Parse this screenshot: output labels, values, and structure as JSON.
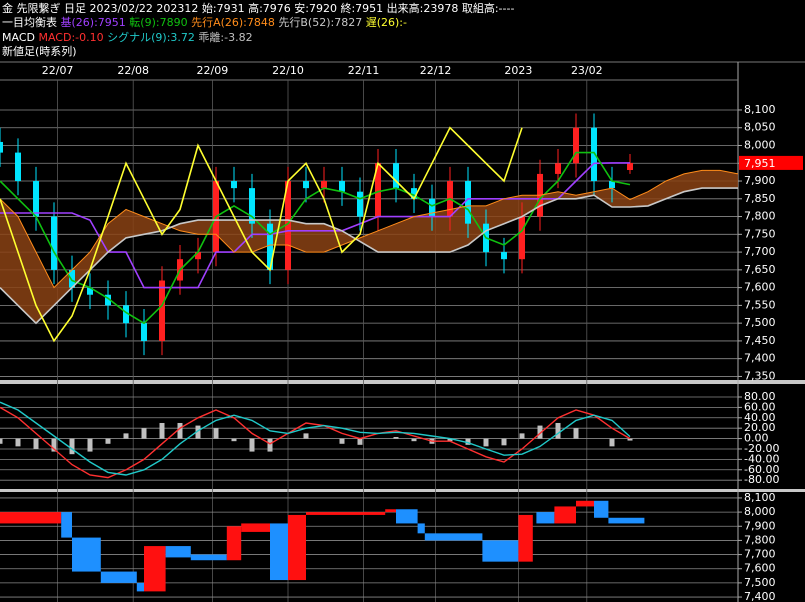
{
  "chart_data": [
    {
      "type": "candlestick",
      "title": "金 先限繋ぎ 日足 2023/02/22 202312 始:7931 高:7976 安:7920 終:7951 出来高:23978 取組高:----",
      "subtitle": "一目均衡表",
      "xlim": [
        0,
        205
      ],
      "ylim": [
        7340,
        8235
      ],
      "grid": true,
      "xticks": [
        {
          "value": 16,
          "label": "22/07"
        },
        {
          "value": 37,
          "label": "22/08"
        },
        {
          "value": 59,
          "label": "22/09"
        },
        {
          "value": 80,
          "label": "22/10"
        },
        {
          "value": 101,
          "label": "22/11"
        },
        {
          "value": 121,
          "label": "22/12"
        },
        {
          "value": 144,
          "label": "2023"
        },
        {
          "value": 163,
          "label": "23/02"
        }
      ],
      "yticks": [
        {
          "value": 7350,
          "label": "7,350"
        },
        {
          "value": 7400,
          "label": "7,400"
        },
        {
          "value": 7450,
          "label": "7,450"
        },
        {
          "value": 7500,
          "label": "7,500"
        },
        {
          "value": 7550,
          "label": "7,550"
        },
        {
          "value": 7600,
          "label": "7,600"
        },
        {
          "value": 7650,
          "label": "7,650"
        },
        {
          "value": 7700,
          "label": "7,700"
        },
        {
          "value": 7750,
          "label": "7,750"
        },
        {
          "value": 7800,
          "label": "7,800"
        },
        {
          "value": 7850,
          "label": "7,850"
        },
        {
          "value": 7900,
          "label": "7,900"
        },
        {
          "value": 7950,
          "label": "7,950"
        },
        {
          "value": 8000,
          "label": "8,000"
        },
        {
          "value": 8050,
          "label": "8,050"
        },
        {
          "value": 8100,
          "label": "8,100"
        }
      ],
      "last_price": {
        "value": 7951,
        "label": "7,951"
      },
      "last_price_color": "#ff0000",
      "candles": {
        "up_color": "#ff2020",
        "down_color": "#00e5ff",
        "x": [
          0,
          5,
          10,
          15,
          20,
          25,
          30,
          35,
          40,
          45,
          50,
          55,
          60,
          65,
          70,
          75,
          80,
          85,
          90,
          95,
          100,
          105,
          110,
          115,
          120,
          125,
          130,
          135,
          140,
          145,
          150,
          155,
          160,
          165,
          170,
          175
        ],
        "open": [
          8010,
          7980,
          7900,
          7800,
          7650,
          7600,
          7580,
          7550,
          7500,
          7450,
          7620,
          7680,
          7700,
          7900,
          7880,
          7780,
          7650,
          7900,
          7880,
          7900,
          7870,
          7800,
          7950,
          7880,
          7850,
          7800,
          7900,
          7780,
          7700,
          7680,
          7800,
          7920,
          7950,
          8050,
          7900,
          7931
        ],
        "high": [
          8050,
          8020,
          7940,
          7840,
          7690,
          7640,
          7620,
          7590,
          7540,
          7660,
          7720,
          7740,
          7940,
          7940,
          7920,
          7820,
          7940,
          7940,
          7940,
          7940,
          7910,
          7990,
          7990,
          7920,
          7890,
          7940,
          7940,
          7820,
          7740,
          7840,
          7960,
          7990,
          8090,
          8090,
          7940,
          7976
        ],
        "low": [
          7940,
          7860,
          7760,
          7610,
          7560,
          7540,
          7510,
          7460,
          7410,
          7410,
          7580,
          7640,
          7660,
          7840,
          7740,
          7610,
          7610,
          7840,
          7840,
          7830,
          7760,
          7760,
          7840,
          7810,
          7760,
          7760,
          7740,
          7660,
          7640,
          7640,
          7760,
          7880,
          7910,
          7860,
          7840,
          7920
        ],
        "close": [
          7980,
          7900,
          7800,
          7650,
          7600,
          7580,
          7550,
          7500,
          7450,
          7620,
          7680,
          7700,
          7900,
          7880,
          7780,
          7650,
          7900,
          7880,
          7900,
          7870,
          7800,
          7950,
          7880,
          7850,
          7800,
          7900,
          7780,
          7700,
          7680,
          7800,
          7920,
          7950,
          8050,
          7900,
          7880,
          7951
        ]
      },
      "series": [
        {
          "name": "基(26):7951",
          "color": "#a040ff",
          "x": [
            0,
            5,
            10,
            15,
            20,
            25,
            30,
            35,
            40,
            45,
            50,
            55,
            60,
            65,
            70,
            75,
            80,
            85,
            90,
            95,
            100,
            105,
            110,
            115,
            120,
            125,
            130,
            135,
            140,
            145,
            150,
            155,
            160,
            165,
            170,
            175
          ],
          "values": [
            7810,
            7810,
            7810,
            7810,
            7810,
            7790,
            7700,
            7700,
            7600,
            7600,
            7600,
            7600,
            7700,
            7700,
            7750,
            7750,
            7760,
            7760,
            7760,
            7760,
            7780,
            7800,
            7800,
            7800,
            7800,
            7800,
            7850,
            7850,
            7850,
            7850,
            7850,
            7850,
            7900,
            7950,
            7951,
            7951
          ]
        },
        {
          "name": "転(9):7890",
          "color": "#10c010",
          "x": [
            0,
            5,
            10,
            15,
            20,
            25,
            30,
            35,
            40,
            45,
            50,
            55,
            60,
            65,
            70,
            75,
            80,
            85,
            90,
            95,
            100,
            105,
            110,
            115,
            120,
            125,
            130,
            135,
            140,
            145,
            150,
            155,
            160,
            165,
            170,
            175
          ],
          "values": [
            7900,
            7850,
            7800,
            7700,
            7620,
            7600,
            7570,
            7530,
            7500,
            7550,
            7650,
            7700,
            7800,
            7830,
            7800,
            7750,
            7780,
            7850,
            7880,
            7870,
            7850,
            7870,
            7880,
            7860,
            7830,
            7850,
            7820,
            7740,
            7720,
            7760,
            7850,
            7900,
            7980,
            7980,
            7900,
            7890
          ]
        },
        {
          "name": "先行A(26):7848",
          "color": "#ff8c1a",
          "fill": "#8a4214",
          "x": [
            0,
            5,
            10,
            15,
            20,
            25,
            30,
            35,
            40,
            45,
            50,
            55,
            60,
            65,
            70,
            75,
            80,
            85,
            90,
            95,
            100,
            105,
            110,
            115,
            120,
            125,
            130,
            135,
            140,
            145,
            150,
            155,
            160,
            165,
            170,
            175,
            180,
            185,
            190,
            195,
            200,
            205
          ],
          "values": [
            7850,
            7800,
            7700,
            7600,
            7650,
            7700,
            7780,
            7820,
            7800,
            7780,
            7760,
            7750,
            7750,
            7700,
            7700,
            7720,
            7720,
            7700,
            7700,
            7720,
            7740,
            7760,
            7780,
            7800,
            7810,
            7820,
            7830,
            7830,
            7850,
            7860,
            7860,
            7870,
            7860,
            7870,
            7880,
            7848,
            7870,
            7900,
            7920,
            7930,
            7930,
            7920
          ]
        },
        {
          "name": "先行B(52):7827",
          "color": "#c8c8c8",
          "x": [
            0,
            5,
            10,
            15,
            20,
            25,
            30,
            35,
            40,
            45,
            50,
            55,
            60,
            65,
            70,
            75,
            80,
            85,
            90,
            95,
            100,
            105,
            110,
            115,
            120,
            125,
            130,
            135,
            140,
            145,
            150,
            155,
            160,
            165,
            170,
            175,
            180,
            185,
            190,
            195,
            200,
            205
          ],
          "values": [
            7600,
            7550,
            7500,
            7550,
            7600,
            7650,
            7700,
            7740,
            7750,
            7760,
            7780,
            7790,
            7790,
            7790,
            7790,
            7790,
            7790,
            7780,
            7780,
            7760,
            7730,
            7700,
            7700,
            7700,
            7700,
            7700,
            7720,
            7760,
            7780,
            7800,
            7830,
            7850,
            7850,
            7860,
            7827,
            7827,
            7830,
            7850,
            7870,
            7880,
            7880,
            7880
          ]
        },
        {
          "name": "遅(26):-",
          "color": "#ffff30",
          "x": [
            0,
            5,
            10,
            15,
            20,
            25,
            30,
            35,
            40,
            45,
            50,
            55,
            60,
            65,
            70,
            75,
            80,
            85,
            90,
            95,
            100,
            105,
            110,
            115,
            120,
            125,
            130,
            135,
            140,
            145
          ],
          "values": [
            7850,
            7700,
            7550,
            7450,
            7520,
            7650,
            7800,
            7950,
            7850,
            7750,
            7820,
            8000,
            7900,
            7800,
            7700,
            7650,
            7900,
            7950,
            7850,
            7700,
            7750,
            7950,
            7900,
            7850,
            7950,
            8050,
            8000,
            7950,
            7900,
            8050
          ]
        }
      ]
    },
    {
      "type": "line",
      "title": "MACD",
      "xlim": [
        0,
        205
      ],
      "ylim": [
        -97,
        105
      ],
      "grid": true,
      "yticks": [
        {
          "value": 80,
          "label": "80.00"
        },
        {
          "value": 60,
          "label": "60.00"
        },
        {
          "value": 40,
          "label": "40.00"
        },
        {
          "value": 20,
          "label": "20.00"
        },
        {
          "value": 0,
          "label": "0.00"
        },
        {
          "value": -20,
          "label": "-20.00"
        },
        {
          "value": -40,
          "label": "-40.00"
        },
        {
          "value": -60,
          "label": "-60.00"
        },
        {
          "value": -80,
          "label": "-80.00"
        }
      ],
      "x": [
        0,
        5,
        10,
        15,
        20,
        25,
        30,
        35,
        40,
        45,
        50,
        55,
        60,
        65,
        70,
        75,
        80,
        85,
        90,
        95,
        100,
        105,
        110,
        115,
        120,
        125,
        130,
        135,
        140,
        145,
        150,
        155,
        160,
        165,
        170,
        175
      ],
      "series": [
        {
          "name": "乖離:-3.82",
          "color": "#c0c0c0",
          "type": "bar",
          "values": [
            -10,
            -15,
            -20,
            -25,
            -30,
            -25,
            -10,
            10,
            20,
            30,
            30,
            25,
            20,
            -5,
            -25,
            -25,
            0,
            10,
            0,
            -10,
            -12,
            0,
            3,
            -5,
            -10,
            -5,
            -12,
            -15,
            -13,
            10,
            25,
            30,
            20,
            0,
            -15,
            -3.82
          ]
        },
        {
          "name": "MACD:-0.10",
          "color": "#ff3030",
          "type": "line",
          "values": [
            60,
            40,
            10,
            -20,
            -50,
            -70,
            -75,
            -60,
            -40,
            -10,
            20,
            40,
            55,
            40,
            10,
            -10,
            10,
            30,
            25,
            10,
            0,
            10,
            15,
            5,
            -5,
            -5,
            -20,
            -35,
            -45,
            -20,
            10,
            40,
            55,
            45,
            20,
            -0.1
          ]
        },
        {
          "name": "シグナル(9):3.72",
          "color": "#20c8c8",
          "type": "line",
          "values": [
            70,
            55,
            30,
            5,
            -20,
            -45,
            -65,
            -70,
            -60,
            -40,
            -10,
            15,
            35,
            45,
            35,
            15,
            10,
            20,
            25,
            20,
            12,
            10,
            12,
            10,
            5,
            0,
            -8,
            -20,
            -32,
            -30,
            -15,
            10,
            35,
            45,
            35,
            3.72
          ]
        }
      ]
    },
    {
      "type": "floating",
      "title": "新値足(時系列)",
      "xlim": [
        0,
        205
      ],
      "ylim": [
        7365,
        8142
      ],
      "grid": true,
      "yticks": [
        {
          "value": 7400,
          "label": "7,400"
        },
        {
          "value": 7500,
          "label": "7,500"
        },
        {
          "value": 7600,
          "label": "7,600"
        },
        {
          "value": 7700,
          "label": "7,700"
        },
        {
          "value": 7800,
          "label": "7,800"
        },
        {
          "value": 7900,
          "label": "7,900"
        },
        {
          "value": 8000,
          "label": "8,000"
        },
        {
          "value": 8100,
          "label": "8,100"
        }
      ],
      "up_color": "#ff1010",
      "down_color": "#1e90ff",
      "bricks": {
        "start": [
          0,
          17,
          20,
          28,
          38,
          40,
          46,
          53,
          63,
          67,
          75,
          80,
          85,
          107,
          110,
          116,
          118,
          134,
          144,
          149,
          154,
          160,
          165,
          169
        ],
        "end": [
          17,
          20,
          28,
          38,
          40,
          46,
          53,
          63,
          67,
          75,
          80,
          85,
          107,
          110,
          116,
          118,
          134,
          144,
          148,
          154,
          160,
          165,
          169,
          179
        ],
        "open": [
          7920,
          8000,
          7820,
          7580,
          7500,
          7440,
          7760,
          7700,
          7660,
          7860,
          7920,
          7520,
          7980,
          8000,
          8020,
          7920,
          7850,
          7800,
          7650,
          8000,
          7920,
          8040,
          8080,
          7960
        ],
        "close": [
          8000,
          7820,
          7580,
          7500,
          7440,
          7760,
          7680,
          7660,
          7900,
          7920,
          7520,
          7980,
          8000,
          8020,
          7920,
          7850,
          7800,
          7650,
          7980,
          7920,
          8040,
          8080,
          7960,
          7920
        ]
      }
    }
  ]
}
